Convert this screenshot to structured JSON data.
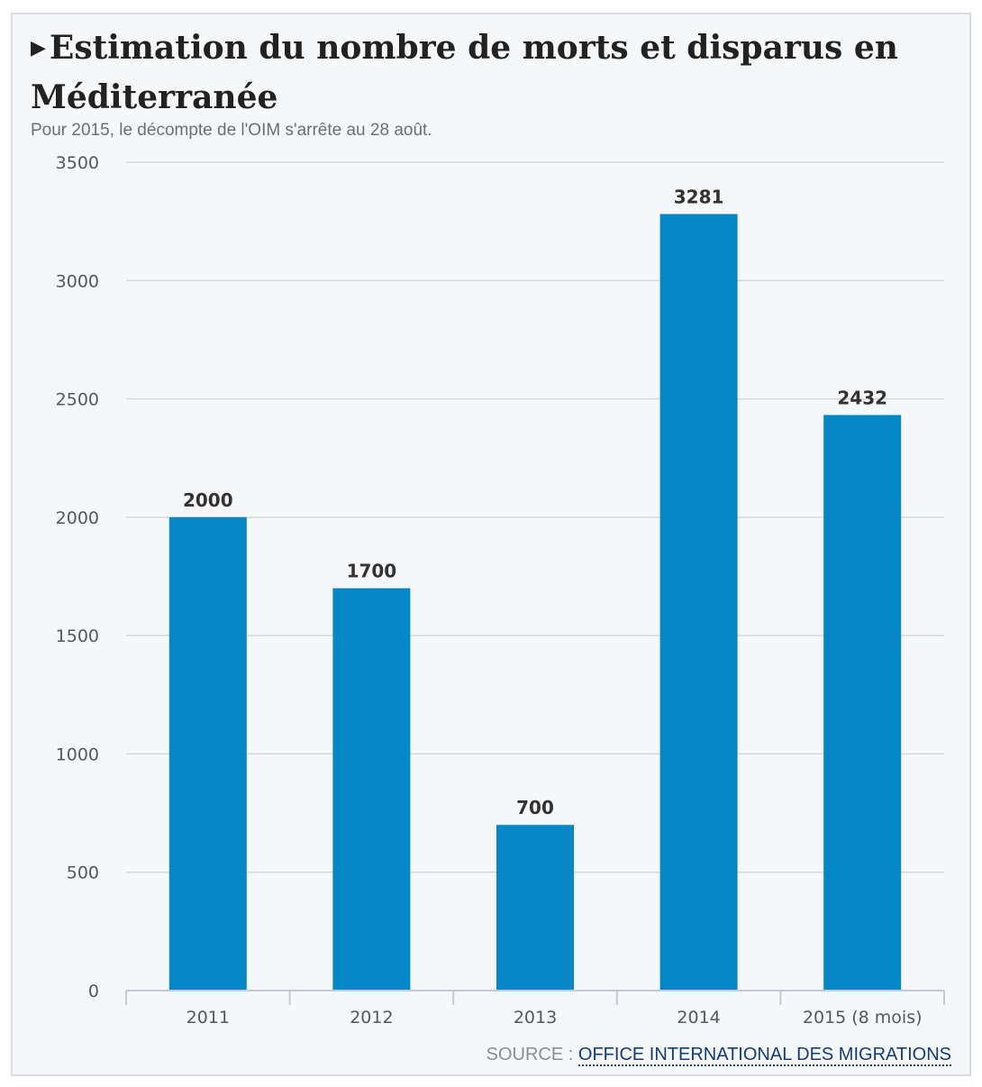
{
  "header": {
    "marker": "▶",
    "title": "Estimation du nombre de morts et disparus en Méditerranée",
    "subtitle": "Pour 2015, le décompte de l'OIM s'arrête au 28 août."
  },
  "source": {
    "label": "SOURCE : ",
    "link_text": "OFFICE INTERNATIONAL DES MIGRATIONS"
  },
  "colors": {
    "bar": "#0587c5",
    "grid": "#d4d7dc",
    "axis": "#bfcbd9",
    "tick_text": "#555860",
    "value_text": "#333333"
  },
  "chart_data": {
    "type": "bar",
    "title": "Estimation du nombre de morts et disparus en Méditerranée",
    "categories": [
      "2011",
      "2012",
      "2013",
      "2014",
      "2015 (8 mois)"
    ],
    "values": [
      2000,
      1700,
      700,
      3281,
      2432
    ],
    "value_labels": [
      "2000",
      "1700",
      "700",
      "3281",
      "2432"
    ],
    "yticks": [
      0,
      500,
      1000,
      1500,
      2000,
      2500,
      3000,
      3500
    ],
    "ylim": [
      0,
      3500
    ],
    "xlabel": "",
    "ylabel": "",
    "grid": true,
    "legend": false
  }
}
